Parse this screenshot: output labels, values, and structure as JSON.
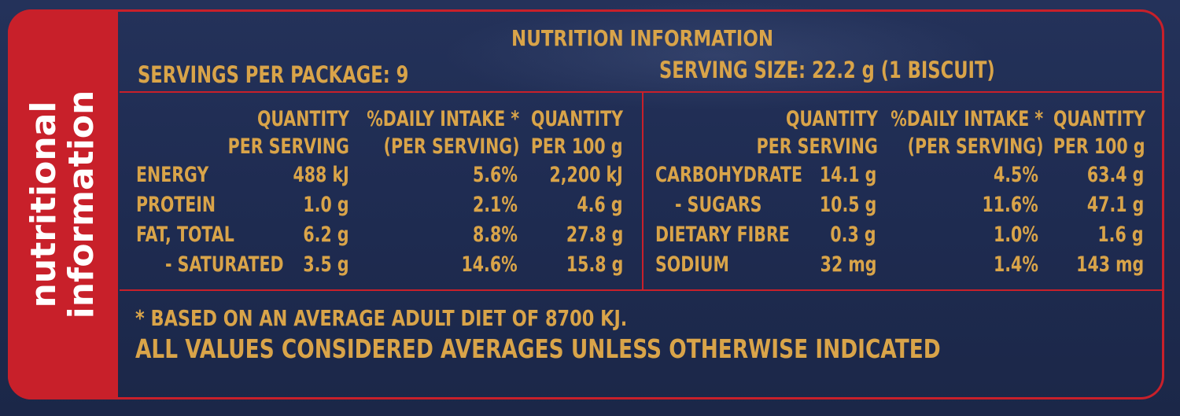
{
  "side_label": {
    "line1": "nutritional",
    "line2": "information"
  },
  "title": "NUTRITION INFORMATION",
  "servings_per_package": "SERVINGS PER PACKAGE: 9",
  "serving_size": "SERVING SIZE: 22.2 g (1 BISCUIT)",
  "left_table": {
    "headers": {
      "qty_line1": "QUANTITY",
      "qty_line2": "PER SERVING",
      "di_line1": "%DAILY INTAKE *",
      "di_line2": "(PER SERVING)",
      "per100_line1": "QUANTITY",
      "per100_line2": "PER 100 g"
    },
    "rows": [
      {
        "label": "ENERGY",
        "qty": "488 kJ",
        "di": "5.6%",
        "per100": "2,200 kJ"
      },
      {
        "label": "PROTEIN",
        "qty": "1.0 g",
        "di": "2.1%",
        "per100": "4.6 g"
      },
      {
        "label": "FAT, TOTAL",
        "qty": "6.2 g",
        "di": "8.8%",
        "per100": "27.8 g"
      },
      {
        "label": "- SATURATED",
        "qty": "3.5 g",
        "di": "14.6%",
        "per100": "15.8 g"
      }
    ]
  },
  "right_table": {
    "headers": {
      "qty_line1": "QUANTITY",
      "qty_line2": "PER SERVING",
      "di_line1": "%DAILY INTAKE *",
      "di_line2": "(PER SERVING)",
      "per100_line1": "QUANTITY",
      "per100_line2": "PER 100 g"
    },
    "rows": [
      {
        "label": "CARBOHYDRATE",
        "qty": "14.1 g",
        "di": "4.5%",
        "per100": "63.4 g"
      },
      {
        "label": "- SUGARS",
        "qty": "10.5 g",
        "di": "11.6%",
        "per100": "47.1 g"
      },
      {
        "label": "DIETARY FIBRE",
        "qty": "0.3 g",
        "di": "1.0%",
        "per100": "1.6 g"
      },
      {
        "label": "SODIUM",
        "qty": "32 mg",
        "di": "1.4%",
        "per100": "143 mg"
      }
    ]
  },
  "footnote": "* BASED ON AN AVERAGE ADULT DIET OF 8700 KJ.",
  "averages_note": "ALL VALUES CONSIDERED AVERAGES UNLESS OTHERWISE INDICATED",
  "colors": {
    "background": "#1e2b4f",
    "accent_red": "#c8202a",
    "gold_text": "#d9a449",
    "white": "#ffffff"
  }
}
